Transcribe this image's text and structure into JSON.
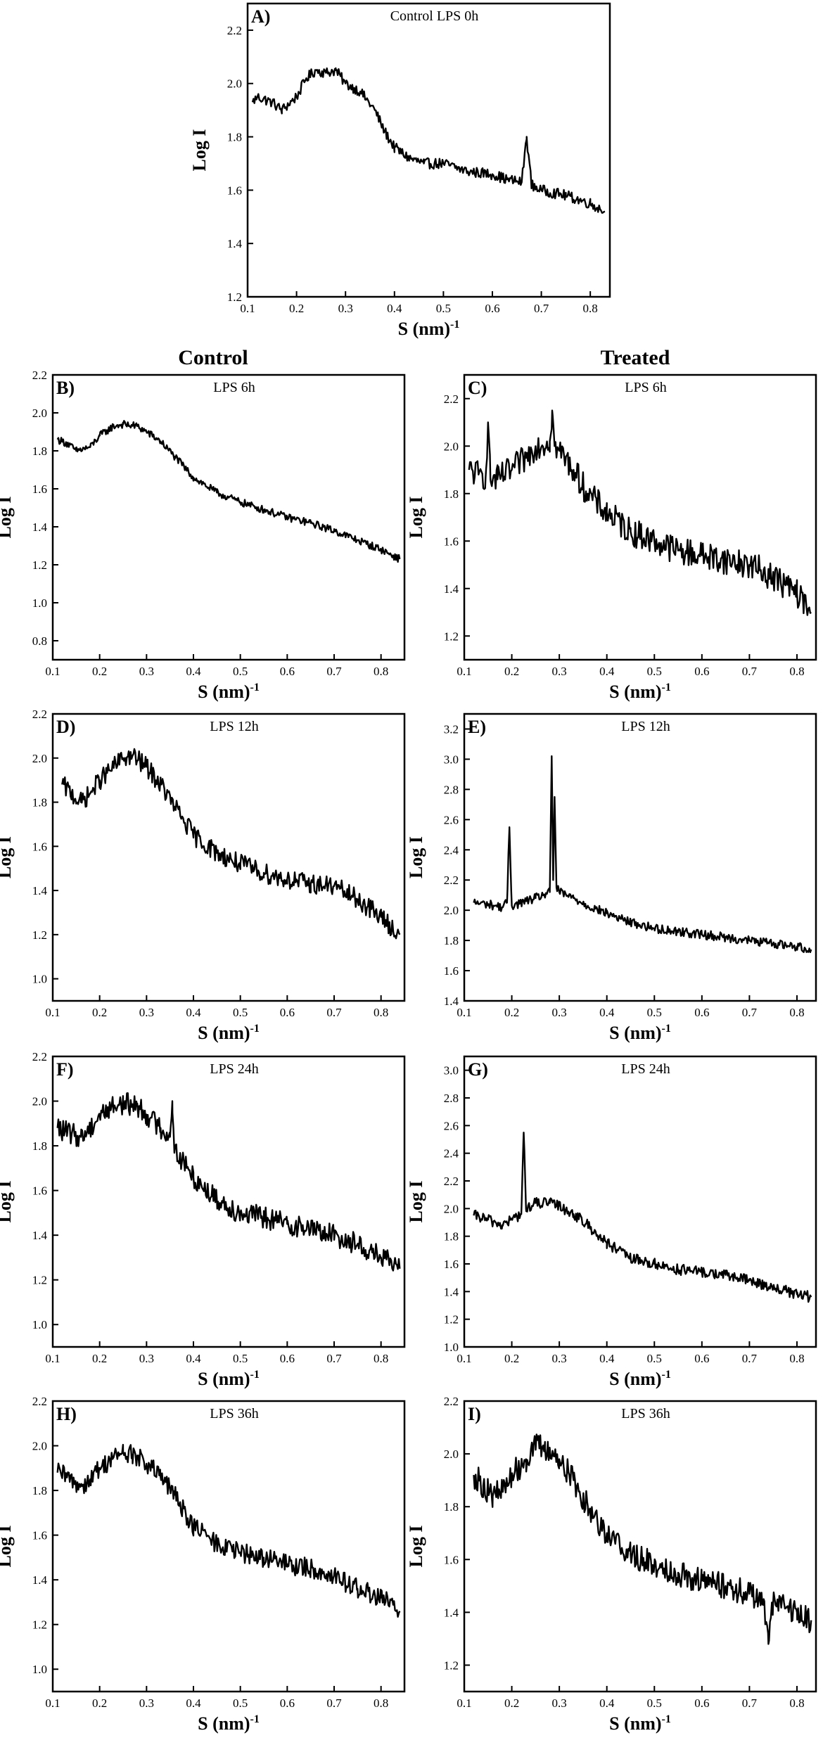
{
  "column_headers": {
    "control": "Control",
    "treated": "Treated"
  },
  "chart_data": [
    {
      "id": "A",
      "type": "line",
      "panel_label": "A)",
      "title": "Control LPS 0h",
      "xlabel": "S (nm)",
      "xlabel_exp": "-1",
      "ylabel": "Log I",
      "xlim": [
        0.1,
        0.84
      ],
      "ylim": [
        1.2,
        2.3
      ],
      "xticks": [
        0.1,
        0.2,
        0.3,
        0.4,
        0.5,
        0.6,
        0.7,
        0.8
      ],
      "yticks": [
        1.2,
        1.4,
        1.6,
        1.8,
        2.0,
        2.2
      ],
      "noise": 0.02,
      "series": [
        {
          "x": [
            0.11,
            0.12,
            0.15,
            0.17,
            0.2,
            0.22,
            0.24,
            0.26,
            0.28,
            0.3,
            0.33,
            0.36,
            0.38,
            0.4,
            0.43,
            0.46,
            0.5,
            0.55,
            0.6,
            0.63,
            0.66,
            0.67,
            0.68,
            0.7,
            0.75,
            0.8,
            0.83
          ],
          "y": [
            1.93,
            1.95,
            1.93,
            1.9,
            1.95,
            2.02,
            2.05,
            2.04,
            2.05,
            2.0,
            1.97,
            1.9,
            1.82,
            1.76,
            1.72,
            1.7,
            1.7,
            1.67,
            1.66,
            1.64,
            1.63,
            1.8,
            1.62,
            1.6,
            1.58,
            1.55,
            1.52
          ]
        }
      ]
    },
    {
      "id": "B",
      "type": "line",
      "panel_label": "B)",
      "title": "LPS 6h",
      "xlabel": "S (nm)",
      "xlabel_exp": "-1",
      "ylabel": "Log I",
      "xlim": [
        0.1,
        0.85
      ],
      "ylim": [
        0.7,
        2.2
      ],
      "xticks": [
        0.1,
        0.2,
        0.3,
        0.4,
        0.5,
        0.6,
        0.7,
        0.8
      ],
      "yticks": [
        0.8,
        1.0,
        1.2,
        1.4,
        1.6,
        1.8,
        2.0,
        2.2
      ],
      "noise": 0.02,
      "series": [
        {
          "x": [
            0.11,
            0.13,
            0.15,
            0.18,
            0.2,
            0.23,
            0.25,
            0.28,
            0.3,
            0.33,
            0.36,
            0.4,
            0.45,
            0.5,
            0.55,
            0.6,
            0.65,
            0.7,
            0.75,
            0.8,
            0.84
          ],
          "y": [
            1.86,
            1.84,
            1.8,
            1.82,
            1.88,
            1.93,
            1.94,
            1.93,
            1.9,
            1.85,
            1.77,
            1.66,
            1.58,
            1.53,
            1.49,
            1.45,
            1.42,
            1.38,
            1.33,
            1.28,
            1.23
          ]
        }
      ]
    },
    {
      "id": "C",
      "type": "line",
      "panel_label": "C)",
      "title": "LPS 6h",
      "xlabel": "S (nm)",
      "xlabel_exp": "-1",
      "ylabel": "Log I",
      "xlim": [
        0.1,
        0.84
      ],
      "ylim": [
        1.1,
        2.3
      ],
      "xticks": [
        0.1,
        0.2,
        0.3,
        0.4,
        0.5,
        0.6,
        0.7,
        0.8
      ],
      "yticks": [
        1.2,
        1.4,
        1.6,
        1.8,
        2.0,
        2.2
      ],
      "noise": 0.06,
      "series": [
        {
          "x": [
            0.11,
            0.13,
            0.145,
            0.15,
            0.155,
            0.17,
            0.2,
            0.23,
            0.25,
            0.28,
            0.285,
            0.29,
            0.3,
            0.33,
            0.36,
            0.4,
            0.45,
            0.5,
            0.55,
            0.6,
            0.65,
            0.7,
            0.75,
            0.8,
            0.83
          ],
          "y": [
            1.9,
            1.88,
            1.87,
            2.1,
            1.86,
            1.86,
            1.9,
            1.95,
            2.0,
            2.02,
            2.15,
            2.0,
            1.98,
            1.9,
            1.8,
            1.72,
            1.64,
            1.6,
            1.56,
            1.54,
            1.52,
            1.5,
            1.45,
            1.38,
            1.3
          ]
        }
      ]
    },
    {
      "id": "D",
      "type": "line",
      "panel_label": "D)",
      "title": "LPS 12h",
      "xlabel": "S (nm)",
      "xlabel_exp": "-1",
      "ylabel": "Log I",
      "xlim": [
        0.1,
        0.85
      ],
      "ylim": [
        0.9,
        2.2
      ],
      "xticks": [
        0.1,
        0.2,
        0.3,
        0.4,
        0.5,
        0.6,
        0.7,
        0.8
      ],
      "yticks": [
        1.0,
        1.2,
        1.4,
        1.6,
        1.8,
        2.0,
        2.2
      ],
      "noise": 0.045,
      "series": [
        {
          "x": [
            0.12,
            0.14,
            0.16,
            0.18,
            0.2,
            0.23,
            0.25,
            0.27,
            0.3,
            0.33,
            0.36,
            0.4,
            0.45,
            0.5,
            0.55,
            0.6,
            0.65,
            0.7,
            0.75,
            0.8,
            0.84
          ],
          "y": [
            1.88,
            1.84,
            1.8,
            1.84,
            1.9,
            1.96,
            2.0,
            2.01,
            1.96,
            1.88,
            1.78,
            1.65,
            1.57,
            1.52,
            1.48,
            1.45,
            1.43,
            1.42,
            1.36,
            1.28,
            1.2
          ]
        }
      ]
    },
    {
      "id": "E",
      "type": "line",
      "panel_label": "E)",
      "title": "LPS 12h",
      "xlabel": "S (nm)",
      "xlabel_exp": "-1",
      "ylabel": "Log I",
      "xlim": [
        0.1,
        0.84
      ],
      "ylim": [
        1.4,
        3.3
      ],
      "xticks": [
        0.1,
        0.2,
        0.3,
        0.4,
        0.5,
        0.6,
        0.7,
        0.8
      ],
      "yticks": [
        1.4,
        1.6,
        1.8,
        2.0,
        2.2,
        2.4,
        2.6,
        2.8,
        3.0,
        3.2
      ],
      "noise": 0.03,
      "series": [
        {
          "x": [
            0.12,
            0.15,
            0.18,
            0.19,
            0.195,
            0.2,
            0.22,
            0.25,
            0.28,
            0.284,
            0.287,
            0.29,
            0.294,
            0.3,
            0.33,
            0.36,
            0.4,
            0.45,
            0.5,
            0.55,
            0.6,
            0.65,
            0.7,
            0.75,
            0.8,
            0.83
          ],
          "y": [
            2.05,
            2.04,
            2.02,
            2.05,
            2.55,
            2.03,
            2.05,
            2.08,
            2.12,
            3.02,
            2.2,
            2.75,
            2.15,
            2.12,
            2.08,
            2.03,
            1.98,
            1.92,
            1.88,
            1.86,
            1.84,
            1.82,
            1.8,
            1.78,
            1.76,
            1.74
          ]
        }
      ]
    },
    {
      "id": "F",
      "type": "line",
      "panel_label": "F)",
      "title": "LPS 24h",
      "xlabel": "S (nm)",
      "xlabel_exp": "-1",
      "ylabel": "Log I",
      "xlim": [
        0.1,
        0.85
      ],
      "ylim": [
        0.9,
        2.2
      ],
      "xticks": [
        0.1,
        0.2,
        0.3,
        0.4,
        0.5,
        0.6,
        0.7,
        0.8
      ],
      "yticks": [
        1.0,
        1.2,
        1.4,
        1.6,
        1.8,
        2.0,
        2.2
      ],
      "noise": 0.05,
      "series": [
        {
          "x": [
            0.11,
            0.13,
            0.16,
            0.18,
            0.2,
            0.23,
            0.25,
            0.28,
            0.3,
            0.33,
            0.35,
            0.355,
            0.36,
            0.4,
            0.45,
            0.5,
            0.55,
            0.6,
            0.65,
            0.7,
            0.75,
            0.8,
            0.84
          ],
          "y": [
            1.88,
            1.86,
            1.84,
            1.88,
            1.94,
            1.98,
            1.99,
            1.98,
            1.94,
            1.88,
            1.84,
            2.0,
            1.78,
            1.66,
            1.56,
            1.5,
            1.48,
            1.45,
            1.43,
            1.4,
            1.36,
            1.3,
            1.25
          ]
        }
      ]
    },
    {
      "id": "G",
      "type": "line",
      "panel_label": "G)",
      "title": "LPS 24h",
      "xlabel": "S (nm)",
      "xlabel_exp": "-1",
      "ylabel": "Log I",
      "xlim": [
        0.1,
        0.84
      ],
      "ylim": [
        1.0,
        3.1
      ],
      "xticks": [
        0.1,
        0.2,
        0.3,
        0.4,
        0.5,
        0.6,
        0.7,
        0.8
      ],
      "yticks": [
        1.0,
        1.2,
        1.4,
        1.6,
        1.8,
        2.0,
        2.2,
        2.4,
        2.6,
        2.8,
        3.0
      ],
      "noise": 0.04,
      "series": [
        {
          "x": [
            0.12,
            0.15,
            0.18,
            0.2,
            0.22,
            0.225,
            0.23,
            0.25,
            0.28,
            0.3,
            0.33,
            0.36,
            0.4,
            0.45,
            0.5,
            0.55,
            0.6,
            0.65,
            0.7,
            0.75,
            0.8,
            0.83
          ],
          "y": [
            1.95,
            1.92,
            1.88,
            1.92,
            1.96,
            2.55,
            2.0,
            2.04,
            2.04,
            2.02,
            1.96,
            1.88,
            1.75,
            1.64,
            1.6,
            1.56,
            1.54,
            1.52,
            1.48,
            1.43,
            1.38,
            1.36
          ]
        }
      ]
    },
    {
      "id": "H",
      "type": "line",
      "panel_label": "H)",
      "title": "LPS 36h",
      "xlabel": "S (nm)",
      "xlabel_exp": "-1",
      "ylabel": "Log I",
      "xlim": [
        0.1,
        0.85
      ],
      "ylim": [
        0.9,
        2.2
      ],
      "xticks": [
        0.1,
        0.2,
        0.3,
        0.4,
        0.5,
        0.6,
        0.7,
        0.8
      ],
      "yticks": [
        1.0,
        1.2,
        1.4,
        1.6,
        1.8,
        2.0,
        2.2
      ],
      "noise": 0.045,
      "series": [
        {
          "x": [
            0.11,
            0.13,
            0.16,
            0.18,
            0.2,
            0.23,
            0.25,
            0.27,
            0.3,
            0.33,
            0.36,
            0.4,
            0.45,
            0.5,
            0.55,
            0.6,
            0.65,
            0.7,
            0.75,
            0.8,
            0.84
          ],
          "y": [
            1.88,
            1.86,
            1.82,
            1.85,
            1.9,
            1.95,
            1.97,
            1.96,
            1.92,
            1.86,
            1.78,
            1.64,
            1.56,
            1.52,
            1.5,
            1.47,
            1.45,
            1.42,
            1.36,
            1.32,
            1.26
          ]
        }
      ]
    },
    {
      "id": "I",
      "type": "line",
      "panel_label": "I)",
      "title": "LPS 36h",
      "xlabel": "S (nm)",
      "xlabel_exp": "-1",
      "ylabel": "Log I",
      "xlim": [
        0.1,
        0.84
      ],
      "ylim": [
        1.1,
        2.2
      ],
      "xticks": [
        0.1,
        0.2,
        0.3,
        0.4,
        0.5,
        0.6,
        0.7,
        0.8
      ],
      "yticks": [
        1.2,
        1.4,
        1.6,
        1.8,
        2.0,
        2.2
      ],
      "noise": 0.05,
      "series": [
        {
          "x": [
            0.12,
            0.14,
            0.16,
            0.18,
            0.2,
            0.23,
            0.25,
            0.27,
            0.3,
            0.33,
            0.36,
            0.4,
            0.45,
            0.5,
            0.55,
            0.6,
            0.65,
            0.7,
            0.73,
            0.74,
            0.75,
            0.8,
            0.83
          ],
          "y": [
            1.92,
            1.88,
            1.84,
            1.86,
            1.92,
            1.98,
            2.03,
            2.02,
            1.98,
            1.9,
            1.8,
            1.7,
            1.62,
            1.58,
            1.55,
            1.52,
            1.5,
            1.47,
            1.45,
            1.28,
            1.44,
            1.4,
            1.37
          ]
        }
      ]
    }
  ]
}
